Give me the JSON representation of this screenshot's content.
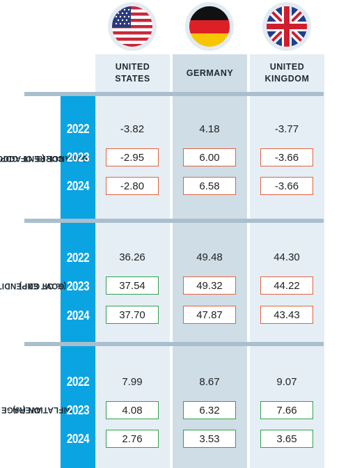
{
  "countries": [
    {
      "name_line1": "UNITED",
      "name_line2": "STATES",
      "flag": "us-flag-icon"
    },
    {
      "name_line1": "GERMANY",
      "name_line2": "",
      "flag": "germany-flag-icon"
    },
    {
      "name_line1": "UNITED",
      "name_line2": "KINGDOM",
      "flag": "uk-flag-icon"
    }
  ],
  "colors": {
    "year_bar": "#0aa4e2",
    "increase_border": "#2fa14c",
    "decrease_border": "#e0633f",
    "column_light": "#e5eef5",
    "column_dark": "#cfdde6"
  },
  "sections": [
    {
      "label_line1": "CURRENT ACCOUNT",
      "label_line2": "BALANCE (% OF GDP)",
      "years": [
        "2022",
        "2023",
        "2024"
      ],
      "rows": [
        {
          "values": [
            "-3.82",
            "4.18",
            "-3.77"
          ],
          "status": [
            "none",
            "none",
            "none"
          ]
        },
        {
          "values": [
            "-2.95",
            "6.00",
            "-3.66"
          ],
          "status": [
            "red",
            "red",
            "red"
          ]
        },
        {
          "values": [
            "-2.80",
            "6.58",
            "-3.66"
          ],
          "status": [
            "red",
            "red",
            "red"
          ]
        }
      ]
    },
    {
      "label_line1": "GOVT EXPENDITURE",
      "label_line2": "(% OF GDP)",
      "years": [
        "2022",
        "2023",
        "2024"
      ],
      "rows": [
        {
          "values": [
            "36.26",
            "49.48",
            "44.30"
          ],
          "status": [
            "none",
            "none",
            "none"
          ]
        },
        {
          "values": [
            "37.54",
            "49.32",
            "44.22"
          ],
          "status": [
            "green",
            "red",
            "red"
          ]
        },
        {
          "values": [
            "37.70",
            "47.87",
            "43.43"
          ],
          "status": [
            "green",
            "red",
            "red"
          ]
        }
      ]
    },
    {
      "label_line1": "AVERAGE",
      "label_line2": "INFLATION (%)",
      "years": [
        "2022",
        "2023",
        "2024"
      ],
      "rows": [
        {
          "values": [
            "7.99",
            "8.67",
            "9.07"
          ],
          "status": [
            "none",
            "none",
            "none"
          ]
        },
        {
          "values": [
            "4.08",
            "6.32",
            "7.66"
          ],
          "status": [
            "green",
            "green",
            "green"
          ]
        },
        {
          "values": [
            "2.76",
            "3.53",
            "3.65"
          ],
          "status": [
            "green",
            "green",
            "green"
          ]
        }
      ]
    }
  ]
}
